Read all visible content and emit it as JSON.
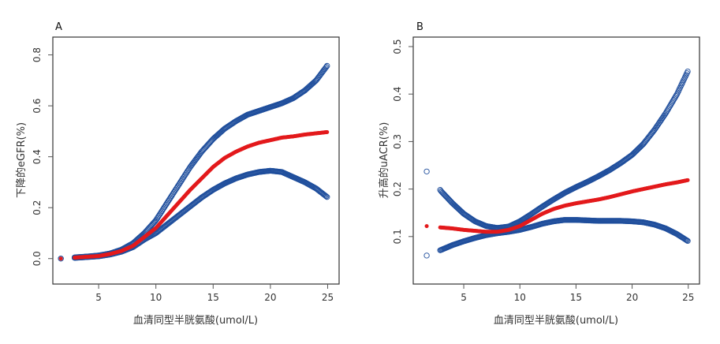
{
  "chart_data": [
    {
      "type": "scatter",
      "panel_label": "A",
      "xlabel": "血清同型半胱氨酸(umol/L)",
      "ylabel": "下降的eGFR(%)",
      "xlim": [
        1,
        26
      ],
      "ylim": [
        -0.1,
        0.87
      ],
      "xticks": [
        5,
        10,
        15,
        20,
        25
      ],
      "yticks": [
        0.0,
        0.2,
        0.4,
        0.6,
        0.8
      ],
      "ytick_labels": [
        "0.0",
        "0.2",
        "0.4",
        "0.6",
        "0.8"
      ],
      "grid": false,
      "series": [
        {
          "role": "upper-ci",
          "color": "#1f4e9c",
          "marker": "open-circle",
          "x": [
            1.7,
            3.0,
            4.0,
            5.0,
            6.0,
            7.0,
            8.0,
            9.0,
            10.0,
            11.0,
            12.0,
            13.0,
            14.0,
            15.0,
            16.0,
            17.0,
            18.0,
            19.0,
            20.0,
            21.0,
            22.0,
            23.0,
            24.0,
            25.0
          ],
          "y": [
            0.0,
            0.005,
            0.008,
            0.012,
            0.02,
            0.035,
            0.06,
            0.1,
            0.15,
            0.22,
            0.29,
            0.36,
            0.42,
            0.47,
            0.51,
            0.54,
            0.565,
            0.58,
            0.595,
            0.61,
            0.63,
            0.66,
            0.7,
            0.76
          ]
        },
        {
          "role": "estimate",
          "color": "#e31a1c",
          "marker": "filled-circle",
          "x": [
            1.7,
            3.0,
            4.0,
            5.0,
            6.0,
            7.0,
            8.0,
            9.0,
            10.0,
            11.0,
            12.0,
            13.0,
            14.0,
            15.0,
            16.0,
            17.0,
            18.0,
            19.0,
            20.0,
            21.0,
            22.0,
            23.0,
            24.0,
            25.0
          ],
          "y": [
            0.0,
            0.004,
            0.007,
            0.01,
            0.018,
            0.03,
            0.05,
            0.085,
            0.12,
            0.17,
            0.22,
            0.27,
            0.315,
            0.36,
            0.395,
            0.42,
            0.44,
            0.455,
            0.465,
            0.475,
            0.48,
            0.487,
            0.492,
            0.497
          ]
        },
        {
          "role": "lower-ci",
          "color": "#1f4e9c",
          "marker": "open-circle",
          "x": [
            1.7,
            3.0,
            4.0,
            5.0,
            6.0,
            7.0,
            8.0,
            9.0,
            10.0,
            11.0,
            12.0,
            13.0,
            14.0,
            15.0,
            16.0,
            17.0,
            18.0,
            19.0,
            20.0,
            21.0,
            22.0,
            23.0,
            24.0,
            25.0
          ],
          "y": [
            0.0,
            0.003,
            0.006,
            0.009,
            0.016,
            0.027,
            0.045,
            0.075,
            0.1,
            0.135,
            0.17,
            0.205,
            0.24,
            0.27,
            0.295,
            0.315,
            0.33,
            0.34,
            0.345,
            0.34,
            0.32,
            0.3,
            0.275,
            0.24
          ]
        }
      ]
    },
    {
      "type": "scatter",
      "panel_label": "B",
      "xlabel": "血清同型半胱氨酸(umol/L)",
      "ylabel": "升高的uACR(%)",
      "xlim": [
        0.5,
        26
      ],
      "ylim": [
        0.0,
        0.52
      ],
      "xticks": [
        5,
        10,
        15,
        20,
        25
      ],
      "yticks": [
        0.1,
        0.2,
        0.3,
        0.4,
        0.5
      ],
      "ytick_labels": [
        "0.1",
        "0.2",
        "0.3",
        "0.4",
        "0.5"
      ],
      "grid": false,
      "series": [
        {
          "role": "upper-ci",
          "color": "#1f4e9c",
          "marker": "open-circle",
          "x": [
            1.7,
            3.0,
            4.0,
            5.0,
            6.0,
            7.0,
            8.0,
            9.0,
            10.0,
            11.0,
            12.0,
            13.0,
            14.0,
            15.0,
            16.0,
            17.0,
            18.0,
            19.0,
            20.0,
            21.0,
            22.0,
            23.0,
            24.0,
            25.0
          ],
          "y": [
            0.237,
            0.195,
            0.17,
            0.148,
            0.132,
            0.122,
            0.118,
            0.121,
            0.132,
            0.147,
            0.163,
            0.178,
            0.192,
            0.204,
            0.215,
            0.227,
            0.24,
            0.255,
            0.272,
            0.295,
            0.325,
            0.36,
            0.4,
            0.45
          ]
        },
        {
          "role": "estimate",
          "color": "#e31a1c",
          "marker": "filled-circle",
          "x": [
            1.7,
            3.0,
            4.0,
            5.0,
            6.0,
            7.0,
            8.0,
            9.0,
            10.0,
            11.0,
            12.0,
            13.0,
            14.0,
            15.0,
            16.0,
            17.0,
            18.0,
            19.0,
            20.0,
            21.0,
            22.0,
            23.0,
            24.0,
            25.0
          ],
          "y": [
            0.122,
            0.119,
            0.117,
            0.114,
            0.112,
            0.11,
            0.11,
            0.114,
            0.122,
            0.135,
            0.148,
            0.158,
            0.165,
            0.17,
            0.174,
            0.178,
            0.183,
            0.189,
            0.195,
            0.2,
            0.205,
            0.21,
            0.214,
            0.219
          ]
        },
        {
          "role": "lower-ci",
          "color": "#1f4e9c",
          "marker": "open-circle",
          "x": [
            1.7,
            3.0,
            4.0,
            5.0,
            6.0,
            7.0,
            8.0,
            9.0,
            10.0,
            11.0,
            12.0,
            13.0,
            14.0,
            15.0,
            16.0,
            17.0,
            18.0,
            19.0,
            20.0,
            21.0,
            22.0,
            23.0,
            24.0,
            25.0
          ],
          "y": [
            0.06,
            0.072,
            0.082,
            0.09,
            0.097,
            0.103,
            0.107,
            0.11,
            0.114,
            0.12,
            0.127,
            0.132,
            0.135,
            0.135,
            0.134,
            0.133,
            0.133,
            0.133,
            0.132,
            0.13,
            0.125,
            0.117,
            0.105,
            0.09
          ]
        }
      ]
    }
  ]
}
